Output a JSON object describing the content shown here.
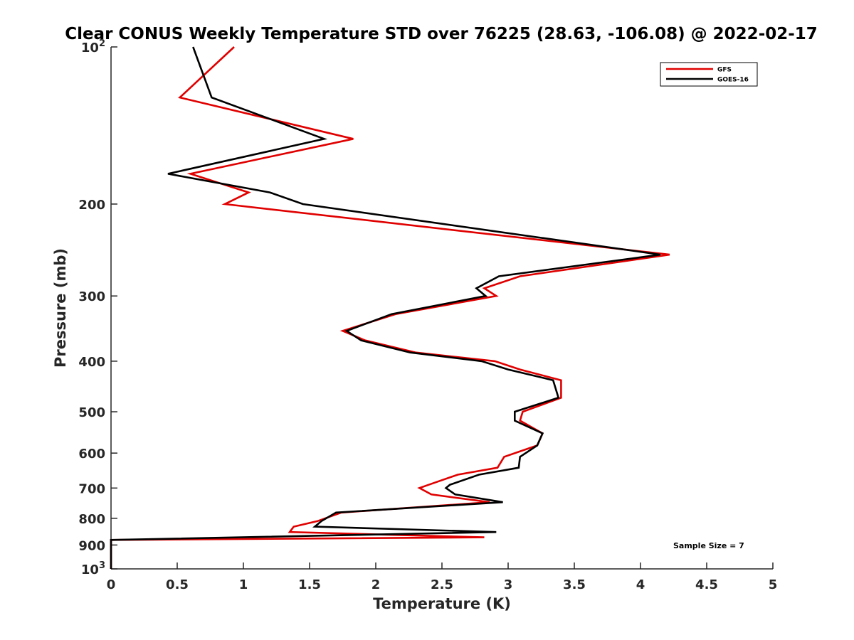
{
  "chart_data": {
    "type": "line",
    "title": "Clear CONUS Weekly Temperature STD over 76225 (28.63, -106.08) @ 2022-02-17",
    "xlabel": "Temperature (K)",
    "ylabel": "Pressure (mb)",
    "xlim": [
      0,
      5
    ],
    "ylim": [
      100,
      1000
    ],
    "y_scale": "log",
    "y_reversed": true,
    "grid": false,
    "legend_position": "top-right",
    "x_ticks": [
      "0",
      "0.5",
      "1",
      "1.5",
      "2",
      "2.5",
      "3",
      "3.5",
      "4",
      "4.5",
      "5"
    ],
    "y_ticks": [
      {
        "value": 100,
        "base": "10",
        "exp": "2"
      },
      {
        "value": 200,
        "label": "200"
      },
      {
        "value": 300,
        "label": "300"
      },
      {
        "value": 400,
        "label": "400"
      },
      {
        "value": 500,
        "label": "500"
      },
      {
        "value": 600,
        "label": "600"
      },
      {
        "value": 700,
        "label": "700"
      },
      {
        "value": 800,
        "label": "800"
      },
      {
        "value": 900,
        "label": "900"
      },
      {
        "value": 1000,
        "base": "10",
        "exp": "3"
      }
    ],
    "annotation": "Sample Size = 7",
    "series": [
      {
        "name": "GFS",
        "color": "#e00000",
        "points": [
          [
            0.93,
            100
          ],
          [
            0.52,
            125
          ],
          [
            1.83,
            150
          ],
          [
            0.6,
            175
          ],
          [
            1.04,
            190
          ],
          [
            0.86,
            200
          ],
          [
            4.22,
            250
          ],
          [
            3.09,
            275
          ],
          [
            2.82,
            290
          ],
          [
            2.91,
            300
          ],
          [
            2.15,
            325
          ],
          [
            1.75,
            350
          ],
          [
            1.92,
            365
          ],
          [
            2.3,
            385
          ],
          [
            2.9,
            400
          ],
          [
            3.09,
            415
          ],
          [
            3.4,
            435
          ],
          [
            3.4,
            470
          ],
          [
            3.11,
            500
          ],
          [
            3.09,
            520
          ],
          [
            3.26,
            550
          ],
          [
            3.22,
            580
          ],
          [
            2.97,
            610
          ],
          [
            2.92,
            640
          ],
          [
            2.62,
            660
          ],
          [
            2.4,
            690
          ],
          [
            2.33,
            700
          ],
          [
            2.42,
            720
          ],
          [
            2.86,
            745
          ],
          [
            1.74,
            780
          ],
          [
            1.56,
            810
          ],
          [
            1.38,
            830
          ],
          [
            1.35,
            850
          ],
          [
            2.82,
            870
          ],
          [
            0,
            880
          ],
          [
            0,
            1000
          ]
        ]
      },
      {
        "name": "GOES-16",
        "color": "#000000",
        "points": [
          [
            0.62,
            100
          ],
          [
            0.76,
            125
          ],
          [
            1.61,
            150
          ],
          [
            0.43,
            175
          ],
          [
            1.2,
            190
          ],
          [
            1.45,
            200
          ],
          [
            4.15,
            250
          ],
          [
            2.93,
            275
          ],
          [
            2.76,
            290
          ],
          [
            2.83,
            300
          ],
          [
            2.12,
            325
          ],
          [
            1.78,
            350
          ],
          [
            1.89,
            365
          ],
          [
            2.26,
            385
          ],
          [
            2.8,
            400
          ],
          [
            3.0,
            415
          ],
          [
            3.34,
            435
          ],
          [
            3.38,
            470
          ],
          [
            3.05,
            500
          ],
          [
            3.05,
            520
          ],
          [
            3.26,
            550
          ],
          [
            3.22,
            580
          ],
          [
            3.09,
            610
          ],
          [
            3.08,
            640
          ],
          [
            2.78,
            660
          ],
          [
            2.56,
            690
          ],
          [
            2.53,
            700
          ],
          [
            2.6,
            720
          ],
          [
            2.96,
            745
          ],
          [
            1.7,
            780
          ],
          [
            1.59,
            810
          ],
          [
            1.54,
            830
          ],
          [
            2.91,
            850
          ],
          [
            0,
            880
          ],
          [
            0,
            1000
          ]
        ]
      }
    ]
  }
}
